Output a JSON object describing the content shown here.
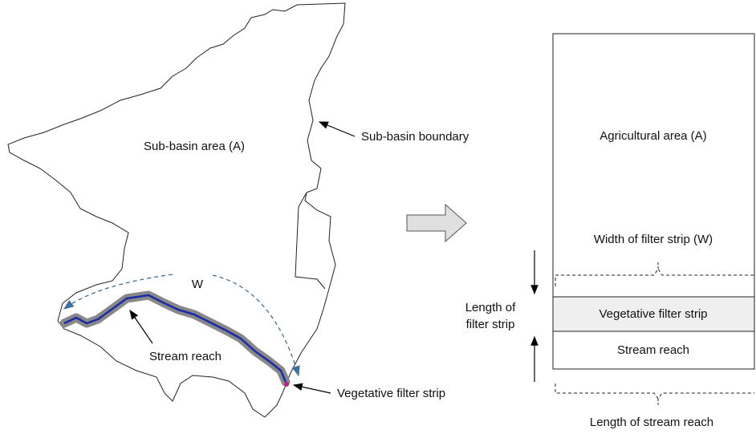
{
  "left": {
    "basin_label": "Sub-basin area (A)",
    "boundary_label": "Sub-basin boundary",
    "width_label": "W",
    "stream_label": "Stream reach",
    "strip_label": "Vegetative filter strip"
  },
  "right": {
    "area_label": "Agricultural area (A)",
    "width_label": "Width of filter strip (W)",
    "length_label_lines": [
      "Length of",
      "filter strip"
    ],
    "strip_label": "Vegetative filter strip",
    "stream_label": "Stream reach",
    "reach_length_label": "Length of stream reach"
  }
}
